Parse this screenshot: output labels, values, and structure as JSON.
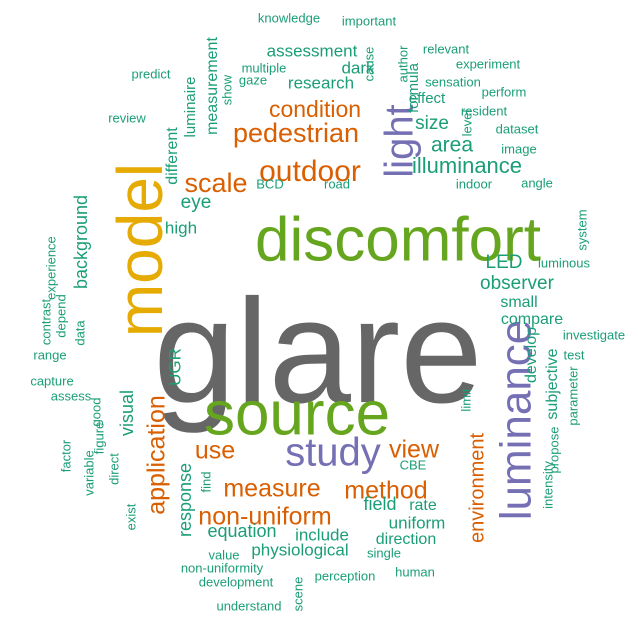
{
  "palette": {
    "gray": "#666666",
    "orange": "#d95f02",
    "green": "#1b9e77",
    "purple": "#7570b3",
    "gold": "#e6ab02",
    "leaf": "#66a61e"
  },
  "words": [
    {
      "text": "glare",
      "color": "gray"
    },
    {
      "text": "discomfort",
      "color": "leaf"
    },
    {
      "text": "model",
      "color": "gold"
    },
    {
      "text": "source",
      "color": "leaf"
    },
    {
      "text": "luminance",
      "color": "purple"
    },
    {
      "text": "study",
      "color": "purple"
    },
    {
      "text": "light",
      "color": "purple"
    },
    {
      "text": "outdoor",
      "color": "orange"
    },
    {
      "text": "pedestrian",
      "color": "orange"
    },
    {
      "text": "condition",
      "color": "orange"
    },
    {
      "text": "scale",
      "color": "orange"
    },
    {
      "text": "application",
      "color": "orange"
    },
    {
      "text": "measure",
      "color": "orange"
    },
    {
      "text": "method",
      "color": "orange"
    },
    {
      "text": "use",
      "color": "orange"
    },
    {
      "text": "view",
      "color": "orange"
    },
    {
      "text": "non-uniform",
      "color": "orange"
    },
    {
      "text": "environment",
      "color": "orange"
    },
    {
      "text": "illuminance",
      "color": "green"
    },
    {
      "text": "area",
      "color": "green"
    },
    {
      "text": "size",
      "color": "green"
    },
    {
      "text": "observer",
      "color": "green"
    },
    {
      "text": "LED",
      "color": "green"
    },
    {
      "text": "eye",
      "color": "green"
    },
    {
      "text": "high",
      "color": "green"
    },
    {
      "text": "background",
      "color": "green"
    },
    {
      "text": "visual",
      "color": "green"
    },
    {
      "text": "UGR",
      "color": "green"
    },
    {
      "text": "response",
      "color": "green"
    },
    {
      "text": "equation",
      "color": "green"
    },
    {
      "text": "field",
      "color": "green"
    },
    {
      "text": "uniform",
      "color": "green"
    },
    {
      "text": "include",
      "color": "green"
    },
    {
      "text": "physiological",
      "color": "green"
    },
    {
      "text": "direction",
      "color": "green"
    },
    {
      "text": "rate",
      "color": "green"
    },
    {
      "text": "develop",
      "color": "green"
    },
    {
      "text": "subjective",
      "color": "green"
    },
    {
      "text": "compare",
      "color": "green"
    },
    {
      "text": "small",
      "color": "green"
    },
    {
      "text": "research",
      "color": "green"
    },
    {
      "text": "assessment",
      "color": "green"
    },
    {
      "text": "dark",
      "color": "green"
    },
    {
      "text": "measurement",
      "color": "green"
    },
    {
      "text": "different",
      "color": "green"
    },
    {
      "text": "luminaire",
      "color": "green"
    },
    {
      "text": "formula",
      "color": "green"
    },
    {
      "text": "effect",
      "color": "green"
    },
    {
      "text": "knowledge",
      "color": "green"
    },
    {
      "text": "important",
      "color": "green"
    },
    {
      "text": "cause",
      "color": "green"
    },
    {
      "text": "relevant",
      "color": "green"
    },
    {
      "text": "experiment",
      "color": "green"
    },
    {
      "text": "multiple",
      "color": "green"
    },
    {
      "text": "gaze",
      "color": "green"
    },
    {
      "text": "show",
      "color": "green"
    },
    {
      "text": "author",
      "color": "green"
    },
    {
      "text": "sensation",
      "color": "green"
    },
    {
      "text": "perform",
      "color": "green"
    },
    {
      "text": "predict",
      "color": "green"
    },
    {
      "text": "review",
      "color": "green"
    },
    {
      "text": "resident",
      "color": "green"
    },
    {
      "text": "level",
      "color": "green"
    },
    {
      "text": "dataset",
      "color": "green"
    },
    {
      "text": "image",
      "color": "green"
    },
    {
      "text": "indoor",
      "color": "green"
    },
    {
      "text": "road",
      "color": "green"
    },
    {
      "text": "BCD",
      "color": "green"
    },
    {
      "text": "angle",
      "color": "green"
    },
    {
      "text": "system",
      "color": "green"
    },
    {
      "text": "luminous",
      "color": "green"
    },
    {
      "text": "investigate",
      "color": "green"
    },
    {
      "text": "test",
      "color": "green"
    },
    {
      "text": "parameter",
      "color": "green"
    },
    {
      "text": "propose",
      "color": "green"
    },
    {
      "text": "intensity",
      "color": "green"
    },
    {
      "text": "limit",
      "color": "green"
    },
    {
      "text": "experience",
      "color": "green"
    },
    {
      "text": "depend",
      "color": "green"
    },
    {
      "text": "contrast",
      "color": "green"
    },
    {
      "text": "data",
      "color": "green"
    },
    {
      "text": "range",
      "color": "green"
    },
    {
      "text": "capture",
      "color": "green"
    },
    {
      "text": "assess",
      "color": "green"
    },
    {
      "text": "factor",
      "color": "green"
    },
    {
      "text": "good",
      "color": "green"
    },
    {
      "text": "figure",
      "color": "green"
    },
    {
      "text": "variable",
      "color": "green"
    },
    {
      "text": "direct",
      "color": "green"
    },
    {
      "text": "exist",
      "color": "green"
    },
    {
      "text": "find",
      "color": "green"
    },
    {
      "text": "CBE",
      "color": "green"
    },
    {
      "text": "value",
      "color": "green"
    },
    {
      "text": "single",
      "color": "green"
    },
    {
      "text": "non-uniformity",
      "color": "green"
    },
    {
      "text": "development",
      "color": "green"
    },
    {
      "text": "perception",
      "color": "green"
    },
    {
      "text": "human",
      "color": "green"
    },
    {
      "text": "understand",
      "color": "green"
    },
    {
      "text": "scene",
      "color": "green"
    }
  ]
}
